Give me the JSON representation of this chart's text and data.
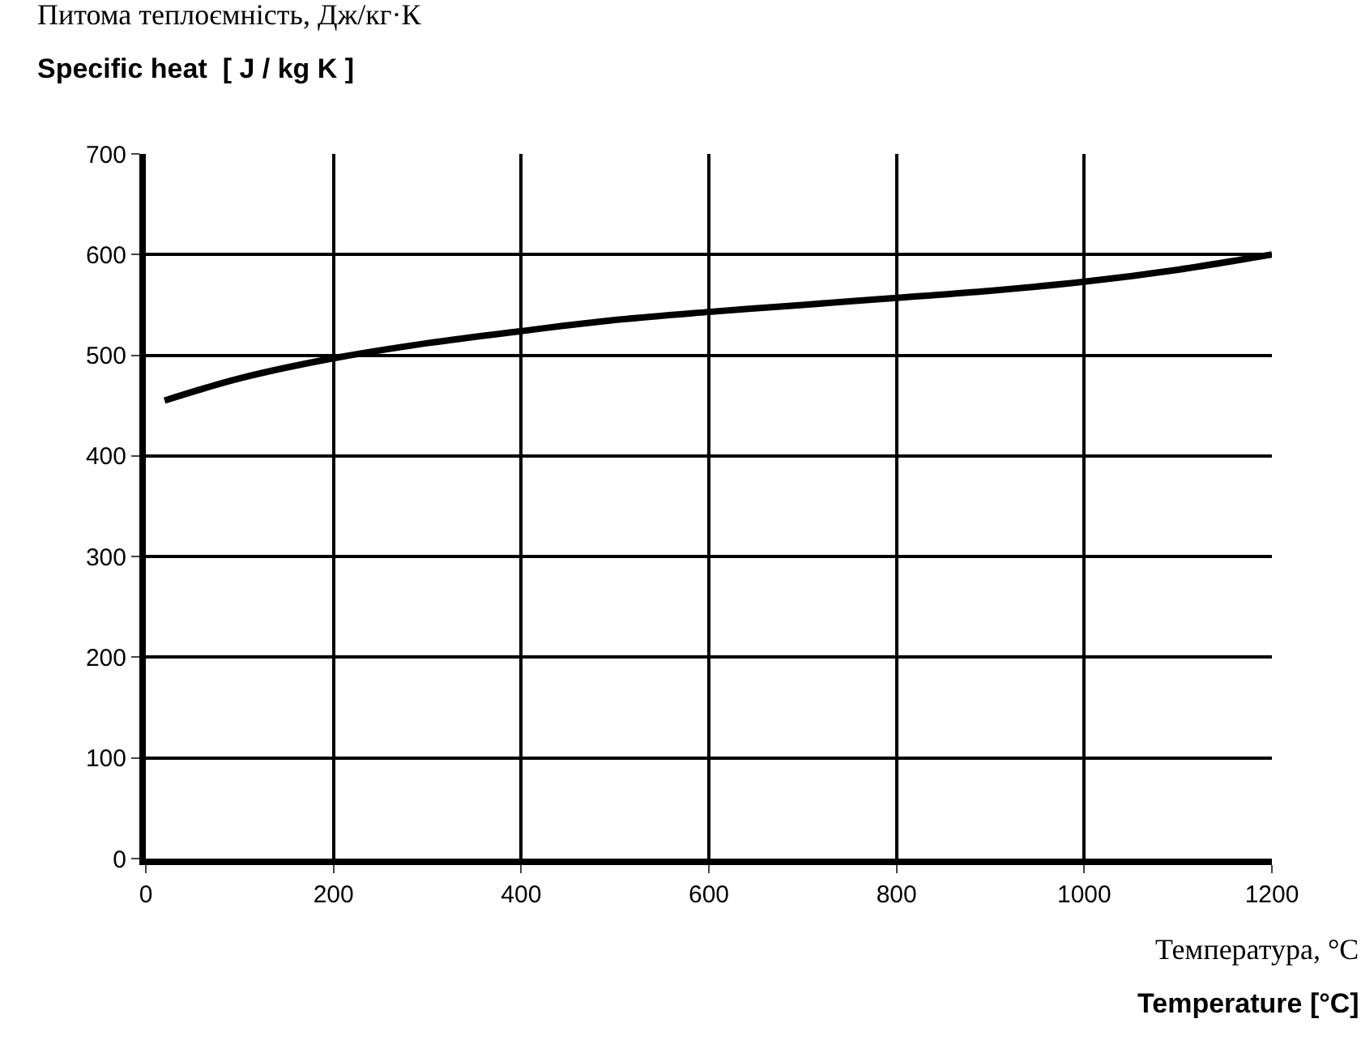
{
  "chart_data": {
    "type": "line",
    "ylabel": "Питома теплоємність, Дж/кг·К\nSpecific heat  [ J / kg K ]",
    "xlabel": "Температура, °С\nTemperature [°C]",
    "x": [
      20,
      100,
      200,
      300,
      400,
      500,
      600,
      700,
      800,
      900,
      1000,
      1100,
      1200
    ],
    "series": [
      {
        "color": "#000000",
        "values": [
          455,
          477,
          497,
          512,
          524,
          535,
          543,
          550,
          557,
          564,
          573,
          585,
          600
        ]
      }
    ],
    "xlim": [
      0,
      1200
    ],
    "xticks": [
      0,
      200,
      400,
      600,
      800,
      1000,
      1200
    ],
    "ylim": [
      0,
      700
    ],
    "yticks": [
      0,
      100,
      200,
      300,
      400,
      500,
      600,
      700
    ],
    "grid": true,
    "legend": false,
    "marker": "none",
    "line_style": "solid"
  }
}
